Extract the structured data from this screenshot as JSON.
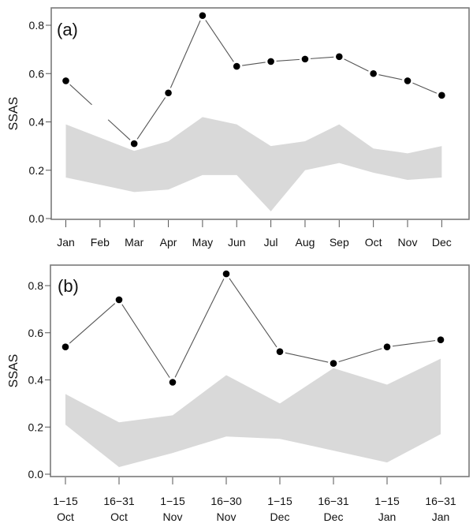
{
  "chart_data": [
    {
      "type": "line",
      "panel_label": "(a)",
      "title": "",
      "xlabel": "",
      "ylabel": "SSAS",
      "ylim": [
        0.0,
        0.8
      ],
      "yticks": [
        "0.0",
        "0.2",
        "0.4",
        "0.6",
        "0.8"
      ],
      "categories": [
        "Jan",
        "Feb",
        "Mar",
        "Apr",
        "May",
        "Jun",
        "Jul",
        "Aug",
        "Sep",
        "Oct",
        "Nov",
        "Dec"
      ],
      "series": [
        {
          "name": "SSAS",
          "style": "points-with-broken-lines",
          "values": [
            0.57,
            null,
            0.31,
            0.52,
            0.84,
            0.63,
            0.65,
            0.66,
            0.67,
            0.6,
            0.57,
            0.51
          ]
        }
      ],
      "band": {
        "name": "range",
        "color": "#d9d9d9",
        "upper": [
          0.39,
          null,
          0.28,
          0.32,
          0.42,
          0.39,
          0.3,
          0.32,
          0.39,
          0.29,
          0.27,
          0.3
        ],
        "lower": [
          0.17,
          null,
          0.11,
          0.12,
          0.18,
          0.18,
          0.03,
          0.2,
          0.23,
          0.19,
          0.16,
          0.17
        ]
      },
      "grid": false,
      "legend": "none"
    },
    {
      "type": "line",
      "panel_label": "(b)",
      "title": "",
      "xlabel": "",
      "ylabel": "SSAS",
      "ylim": [
        0.0,
        0.8
      ],
      "yticks": [
        "0.0",
        "0.2",
        "0.4",
        "0.6",
        "0.8"
      ],
      "categories": [
        [
          "1−15",
          "Oct"
        ],
        [
          "16−31",
          "Oct"
        ],
        [
          "1−15",
          "Nov"
        ],
        [
          "16−30",
          "Nov"
        ],
        [
          "1−15",
          "Dec"
        ],
        [
          "16−31",
          "Dec"
        ],
        [
          "1−15",
          "Jan"
        ],
        [
          "16−31",
          "Jan"
        ]
      ],
      "series": [
        {
          "name": "SSAS",
          "style": "points-with-broken-lines",
          "values": [
            0.54,
            0.74,
            0.39,
            0.85,
            0.52,
            0.47,
            0.54,
            0.57
          ]
        }
      ],
      "band": {
        "name": "range",
        "color": "#d9d9d9",
        "upper": [
          0.34,
          0.22,
          0.25,
          0.42,
          0.3,
          0.45,
          0.38,
          0.49
        ],
        "lower": [
          0.21,
          0.03,
          0.09,
          0.16,
          0.15,
          0.1,
          0.05,
          0.17
        ]
      },
      "grid": false,
      "legend": "none"
    }
  ]
}
